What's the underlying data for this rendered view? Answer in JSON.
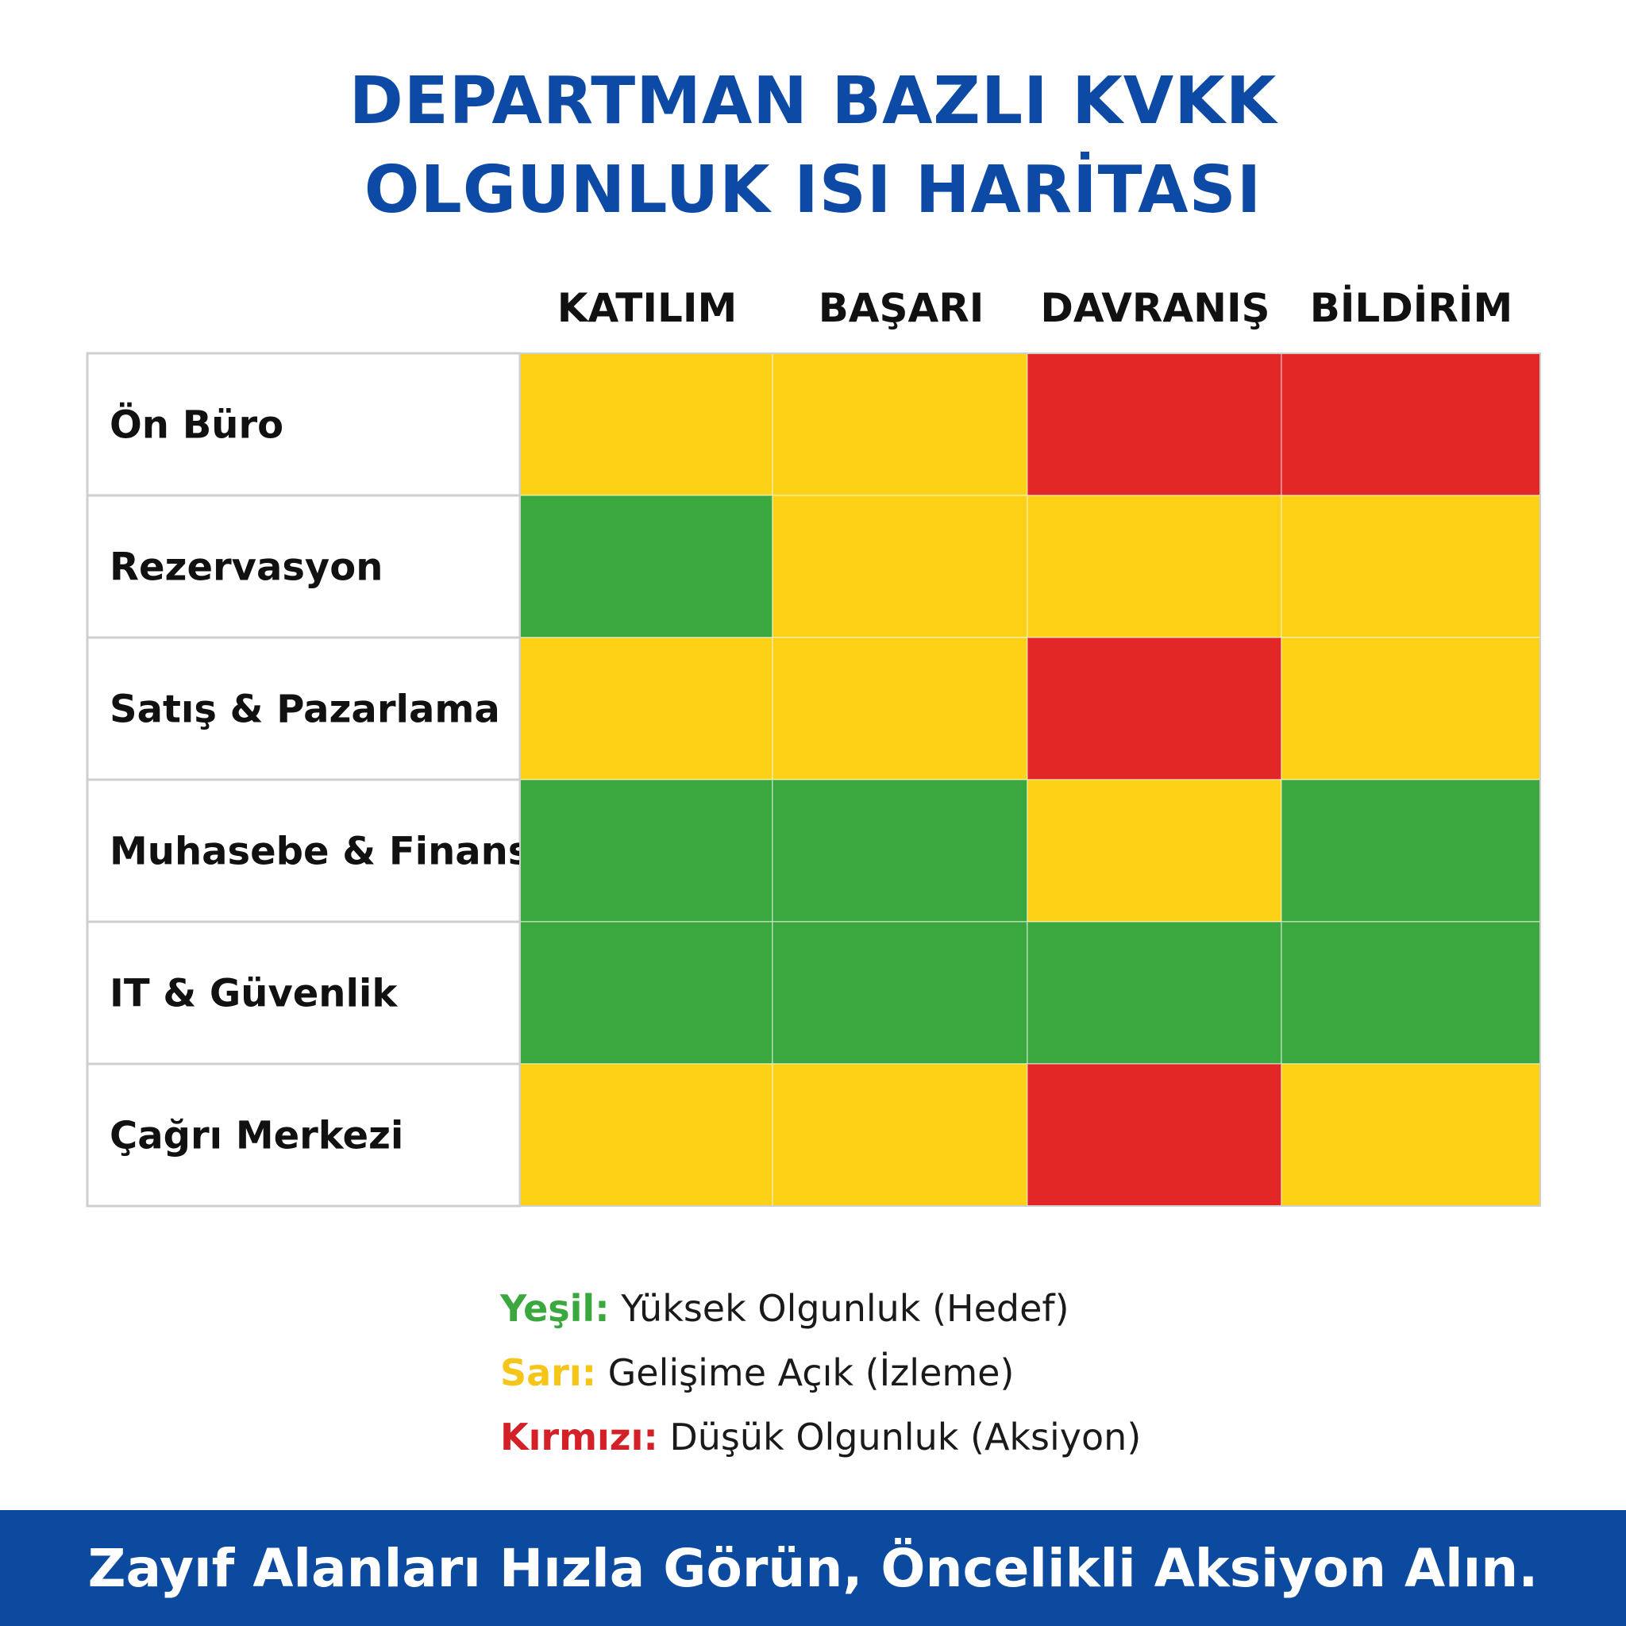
{
  "title_line1": "DEPARTMAN BAZLI KVKK",
  "title_line2": "OLGUNLUK ISI HARİTASI",
  "colors": {
    "title": "#0d4aa6",
    "green": "#3aa83e",
    "yellow": "#fcd116",
    "red": "#e32726",
    "footer_bg": "#0c4aa0",
    "grid_line": "#cfcfcf"
  },
  "chart_data": {
    "type": "heatmap",
    "columns": [
      "KATILIM",
      "BAŞARI",
      "DAVRANIŞ",
      "BİLDİRİM"
    ],
    "rows": [
      "Ön Büro",
      "Rezervasyon",
      "Satış & Pazarlama",
      "Muhasebe & Finans",
      "IT & Güvenlik",
      "Çağrı Merkezi"
    ],
    "values": [
      [
        "yellow",
        "yellow",
        "red",
        "red"
      ],
      [
        "green",
        "yellow",
        "yellow",
        "yellow"
      ],
      [
        "yellow",
        "yellow",
        "red",
        "yellow"
      ],
      [
        "green",
        "green",
        "yellow",
        "green"
      ],
      [
        "green",
        "green",
        "green",
        "green"
      ],
      [
        "yellow",
        "yellow",
        "red",
        "yellow"
      ]
    ]
  },
  "legend": [
    {
      "key": "Yeşil:",
      "text": " Yüksek Olgunluk (Hedef)",
      "color": "#3aa83e"
    },
    {
      "key": "Sarı:",
      "text": " Gelişime Açık (İzleme)",
      "color": "#f5c518"
    },
    {
      "key": "Kırmızı:",
      "text": " Düşük Olgunluk (Aksiyon)",
      "color": "#d42027"
    }
  ],
  "footer_text": "Zayıf Alanları Hızla Görün, Öncelikli Aksiyon Alın."
}
